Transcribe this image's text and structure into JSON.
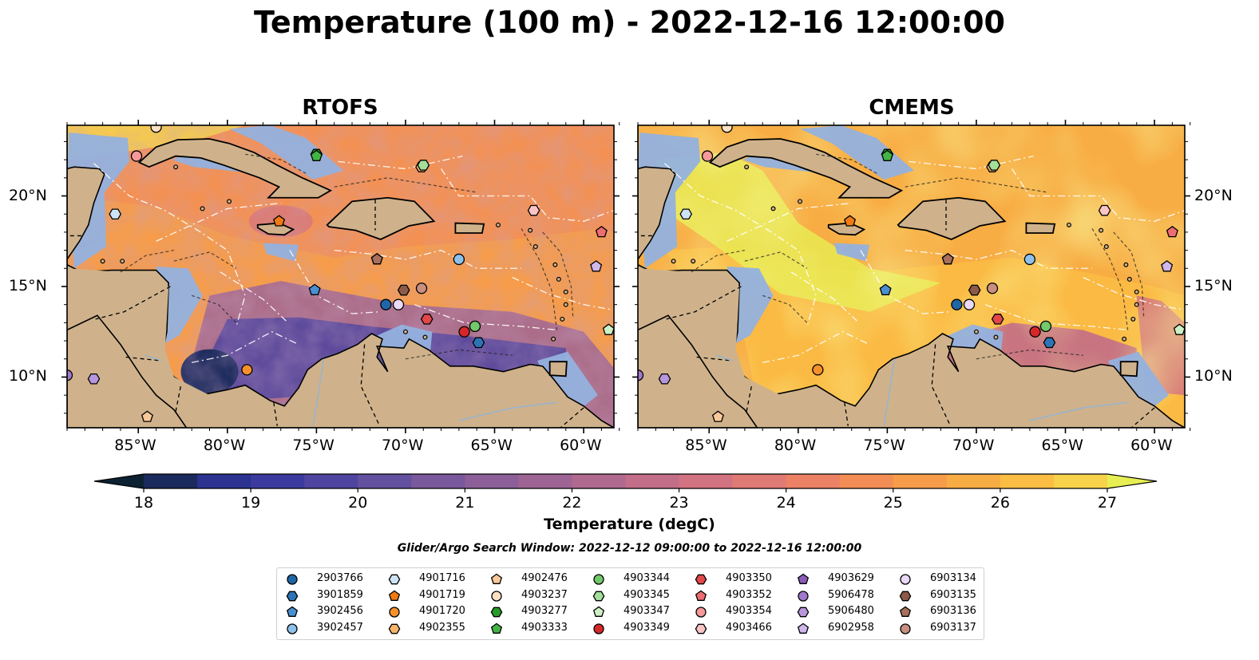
{
  "title": "Temperature (100 m) - 2022-12-16 12:00:00",
  "panels": [
    {
      "title": "RTOFS",
      "style": "rtofs"
    },
    {
      "title": "CMEMS",
      "style": "cmems"
    }
  ],
  "map": {
    "lon_range": [
      -89,
      -58.3
    ],
    "lat_range": [
      7.2,
      23.9
    ],
    "lat_ticks": [
      {
        "lat": 20,
        "label": "20°N"
      },
      {
        "lat": 15,
        "label": "15°N"
      },
      {
        "lat": 10,
        "label": "10°N"
      }
    ],
    "lon_ticks": [
      {
        "lon": -85,
        "label": "85°W"
      },
      {
        "lon": -80,
        "label": "80°W"
      },
      {
        "lon": -75,
        "label": "75°W"
      },
      {
        "lon": -70,
        "label": "70°W"
      },
      {
        "lon": -65,
        "label": "65°W"
      },
      {
        "lon": -60,
        "label": "60°W"
      }
    ],
    "colors": {
      "land": "#cfb28b",
      "shelf": "#94b1de",
      "pacific": "#0e2535"
    }
  },
  "colorbar": {
    "label": "Temperature (degC)",
    "min": 18,
    "max": 27,
    "step": 0.5,
    "ticks": [
      "18",
      "19",
      "20",
      "21",
      "22",
      "23",
      "24",
      "25",
      "26",
      "27"
    ],
    "colors": [
      "#0c2132",
      "#1b2a5c",
      "#2b3290",
      "#3b3a9e",
      "#4f449f",
      "#63509e",
      "#79589c",
      "#8c5f99",
      "#9e6594",
      "#b06a8f",
      "#c26e88",
      "#d27381",
      "#e07a74",
      "#ec8165",
      "#f38d56",
      "#f69c4a",
      "#f8ad44",
      "#fbbd44",
      "#f7d24a",
      "#e7ee53"
    ]
  },
  "search_window": "Glider/Argo Search Window: 2022-12-12 09:00:00 to 2022-12-16 12:00:00",
  "legend_items": [
    {
      "id": "2903766",
      "marker": "circle",
      "color": "#1f66a8"
    },
    {
      "id": "3901859",
      "marker": "hexagon",
      "color": "#2e74b5"
    },
    {
      "id": "3902456",
      "marker": "pentagon",
      "color": "#4a8fd0"
    },
    {
      "id": "3902457",
      "marker": "circle",
      "color": "#8ec1ea"
    },
    {
      "id": "4901716",
      "marker": "hexagon",
      "color": "#cde3f5"
    },
    {
      "id": "4901719",
      "marker": "pentagon",
      "color": "#f07b12"
    },
    {
      "id": "4901720",
      "marker": "circle",
      "color": "#f6902b"
    },
    {
      "id": "4902355",
      "marker": "hexagon",
      "color": "#f8b36d"
    },
    {
      "id": "4902476",
      "marker": "pentagon",
      "color": "#fbc89a"
    },
    {
      "id": "4903237",
      "marker": "circle",
      "color": "#fde0c4"
    },
    {
      "id": "4903277",
      "marker": "hexagon",
      "color": "#279a2a"
    },
    {
      "id": "4903333",
      "marker": "pentagon",
      "color": "#43b443"
    },
    {
      "id": "4903344",
      "marker": "circle",
      "color": "#72c96a"
    },
    {
      "id": "4903345",
      "marker": "hexagon",
      "color": "#a3df9a"
    },
    {
      "id": "4903347",
      "marker": "pentagon",
      "color": "#cdf0c5"
    },
    {
      "id": "4903349",
      "marker": "circle",
      "color": "#d62728"
    },
    {
      "id": "4903350",
      "marker": "hexagon",
      "color": "#e2474a"
    },
    {
      "id": "4903352",
      "marker": "pentagon",
      "color": "#ec6e72"
    },
    {
      "id": "4903354",
      "marker": "circle",
      "color": "#f5999a"
    },
    {
      "id": "4903466",
      "marker": "hexagon",
      "color": "#fbc4c4"
    },
    {
      "id": "4903629",
      "marker": "pentagon",
      "color": "#8a5ab9"
    },
    {
      "id": "5906478",
      "marker": "circle",
      "color": "#a179cc"
    },
    {
      "id": "5906480",
      "marker": "hexagon",
      "color": "#b796dc"
    },
    {
      "id": "6902958",
      "marker": "pentagon",
      "color": "#cfb7ec"
    },
    {
      "id": "6903134",
      "marker": "circle",
      "color": "#ead9f7"
    },
    {
      "id": "6903135",
      "marker": "hexagon",
      "color": "#8c5a48"
    },
    {
      "id": "6903136",
      "marker": "pentagon",
      "color": "#a8705c"
    },
    {
      "id": "6903137",
      "marker": "circle",
      "color": "#c98f80"
    }
  ],
  "floats": [
    {
      "id": "2903766",
      "lon": -71.1,
      "lat": 14.0
    },
    {
      "id": "3901859",
      "lon": -65.9,
      "lat": 11.9
    },
    {
      "id": "3902456",
      "lon": -75.1,
      "lat": 14.8
    },
    {
      "id": "3902457",
      "lon": -67.0,
      "lat": 16.5
    },
    {
      "id": "4901716",
      "lon": -86.3,
      "lat": 19.0
    },
    {
      "id": "4901719",
      "lon": -77.1,
      "lat": 18.6
    },
    {
      "id": "4901720",
      "lon": -78.9,
      "lat": 10.4
    },
    {
      "id": "4902355",
      "lon": -69.1,
      "lat": 21.6
    },
    {
      "id": "4902476",
      "lon": -84.5,
      "lat": 7.8
    },
    {
      "id": "4903237",
      "lon": -84.0,
      "lat": 23.8
    },
    {
      "id": "4903277",
      "lon": -75.0,
      "lat": 22.3
    },
    {
      "id": "4903333",
      "lon": -75.0,
      "lat": 22.2
    },
    {
      "id": "4903344",
      "lon": -66.1,
      "lat": 12.8
    },
    {
      "id": "4903345",
      "lon": -69.0,
      "lat": 21.7
    },
    {
      "id": "4903347",
      "lon": -58.6,
      "lat": 12.6
    },
    {
      "id": "4903349",
      "lon": -66.7,
      "lat": 12.5
    },
    {
      "id": "4903350",
      "lon": -68.8,
      "lat": 13.2
    },
    {
      "id": "4903352",
      "lon": -59.0,
      "lat": 18.0
    },
    {
      "id": "4903354",
      "lon": -85.1,
      "lat": 22.2
    },
    {
      "id": "4903466",
      "lon": -62.8,
      "lat": 19.2
    },
    {
      "id": "4903629",
      "lon": -71.6,
      "lat": 16.5
    },
    {
      "id": "5906478",
      "lon": -89.0,
      "lat": 10.1
    },
    {
      "id": "5906480",
      "lon": -87.5,
      "lat": 9.9
    },
    {
      "id": "6902958",
      "lon": -59.3,
      "lat": 16.1
    },
    {
      "id": "6903134",
      "lon": -70.4,
      "lat": 14.0
    },
    {
      "id": "6903135",
      "lon": -70.1,
      "lat": 14.8
    },
    {
      "id": "6903136",
      "lon": -71.6,
      "lat": 16.5
    },
    {
      "id": "6903137",
      "lon": -69.1,
      "lat": 14.9
    }
  ]
}
